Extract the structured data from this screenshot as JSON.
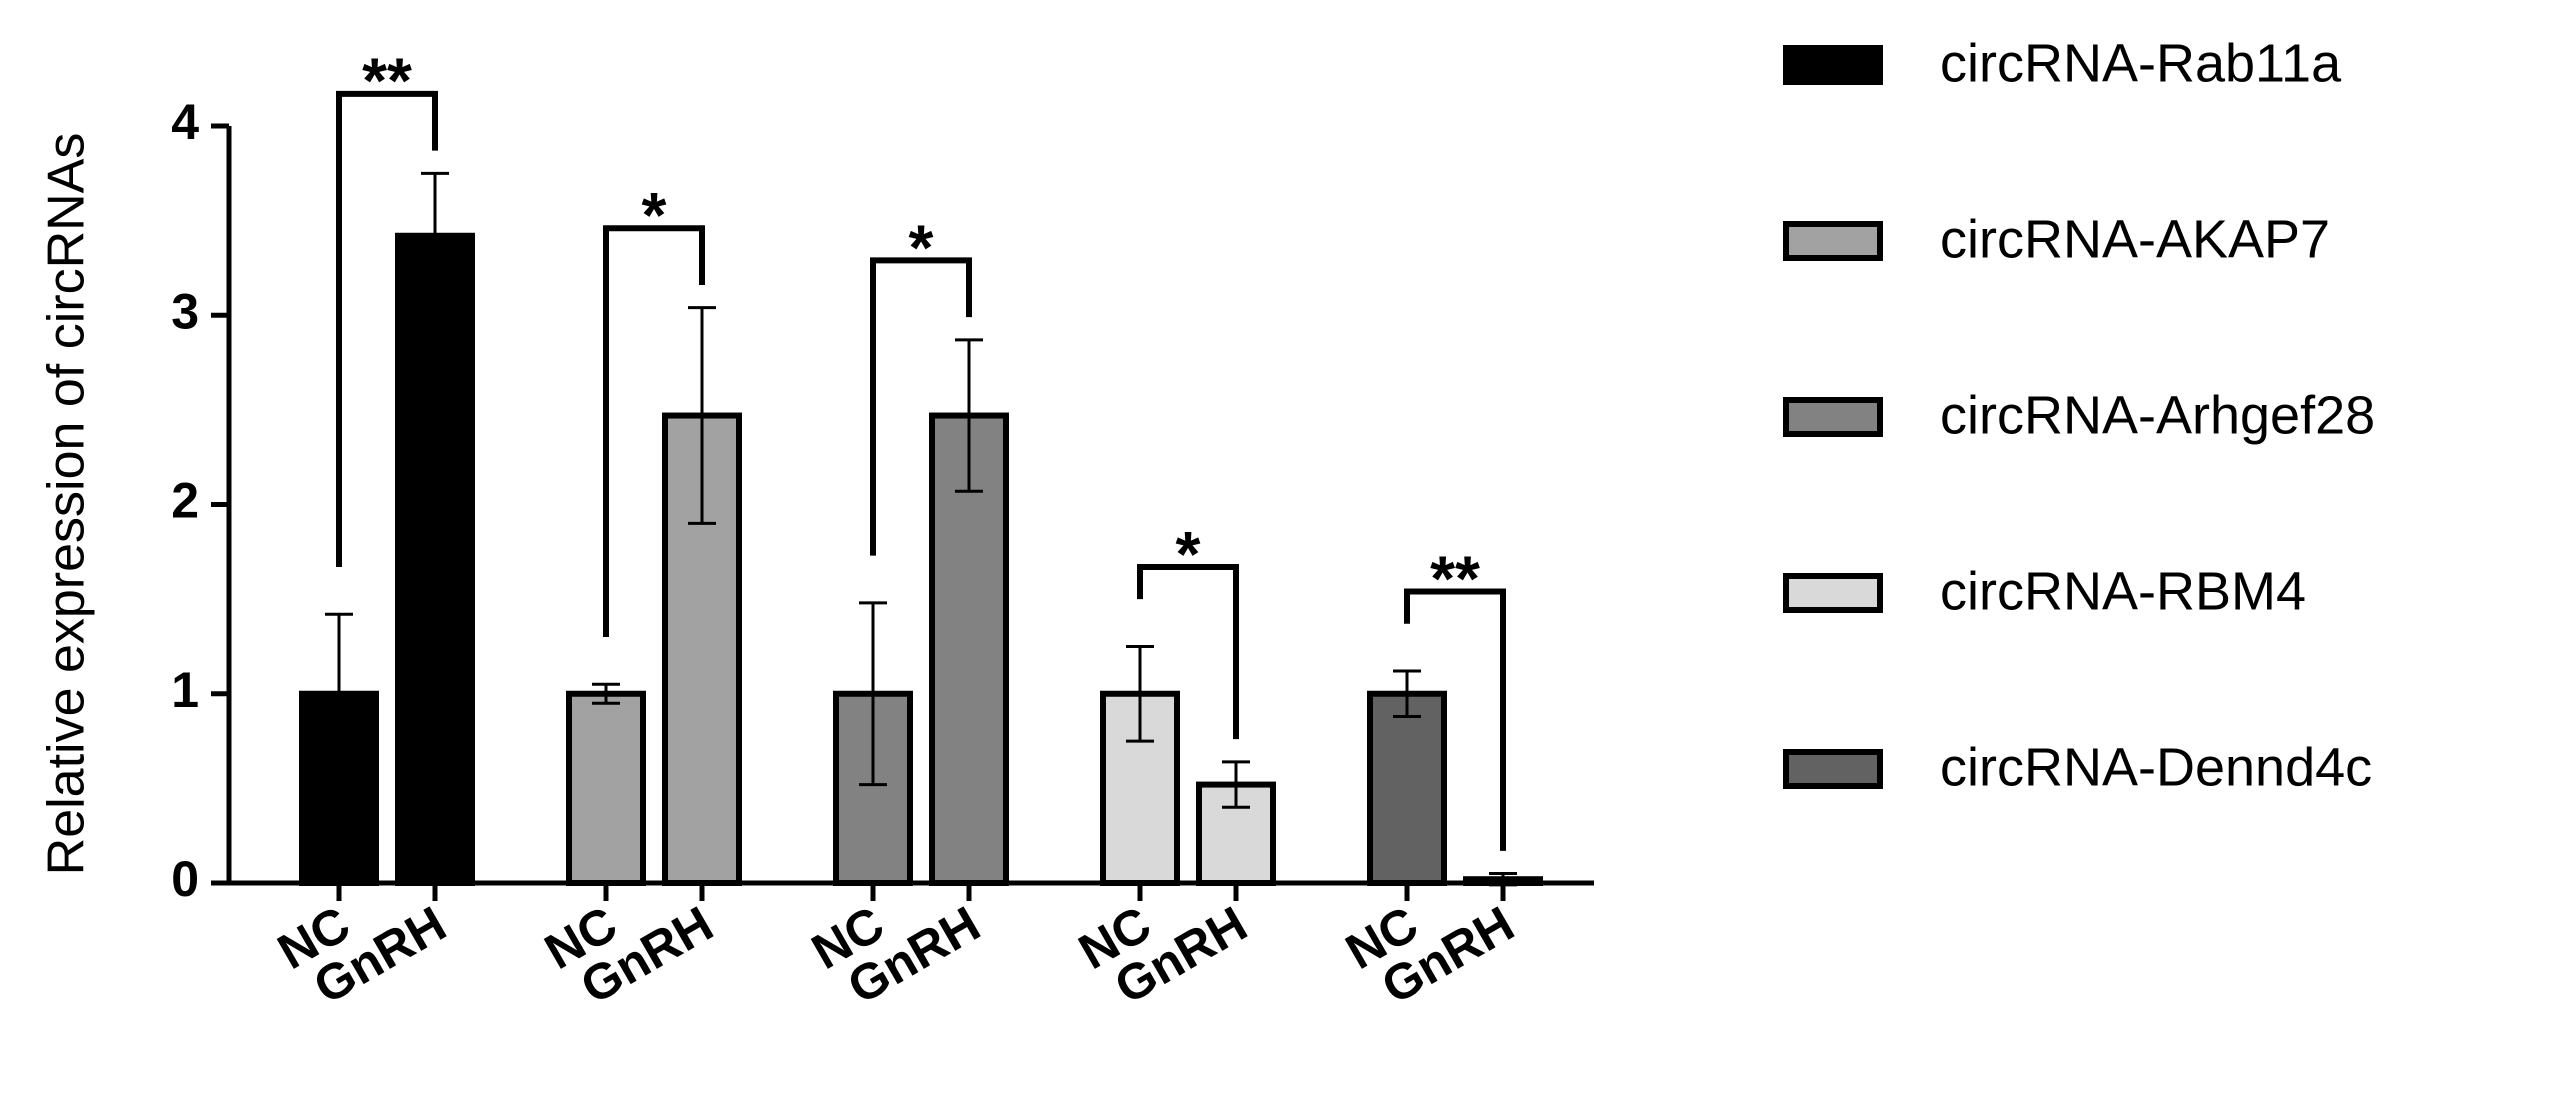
{
  "chart_data": {
    "type": "bar",
    "y_label": "Relative expression of circRNAs",
    "categories": [
      "NC",
      "GnRH"
    ],
    "ylim": [
      0,
      4
    ],
    "yticks": [
      0,
      1,
      2,
      3,
      4
    ],
    "legend": "right",
    "series": [
      {
        "name": "circRNA-Rab11a",
        "color": "#000000",
        "values": [
          1.0,
          3.42
        ],
        "errors": [
          0.42,
          0.33
        ],
        "significance": "**"
      },
      {
        "name": "circRNA-AKAP7",
        "color": "#a2a2a2",
        "values": [
          1.0,
          2.47
        ],
        "errors": [
          0.05,
          0.57
        ],
        "significance": "*"
      },
      {
        "name": "circRNA-Arhgef28",
        "color": "#828282",
        "values": [
          1.0,
          2.47
        ],
        "errors": [
          0.48,
          0.4
        ],
        "significance": "*"
      },
      {
        "name": "circRNA-RBM4",
        "color": "#d9d9d9",
        "values": [
          1.0,
          0.52
        ],
        "errors": [
          0.25,
          0.12
        ],
        "significance": "*"
      },
      {
        "name": "circRNA-Dennd4c",
        "color": "#626262",
        "values": [
          1.0,
          0.02
        ],
        "errors": [
          0.12,
          0.03
        ],
        "significance": "**"
      }
    ]
  }
}
